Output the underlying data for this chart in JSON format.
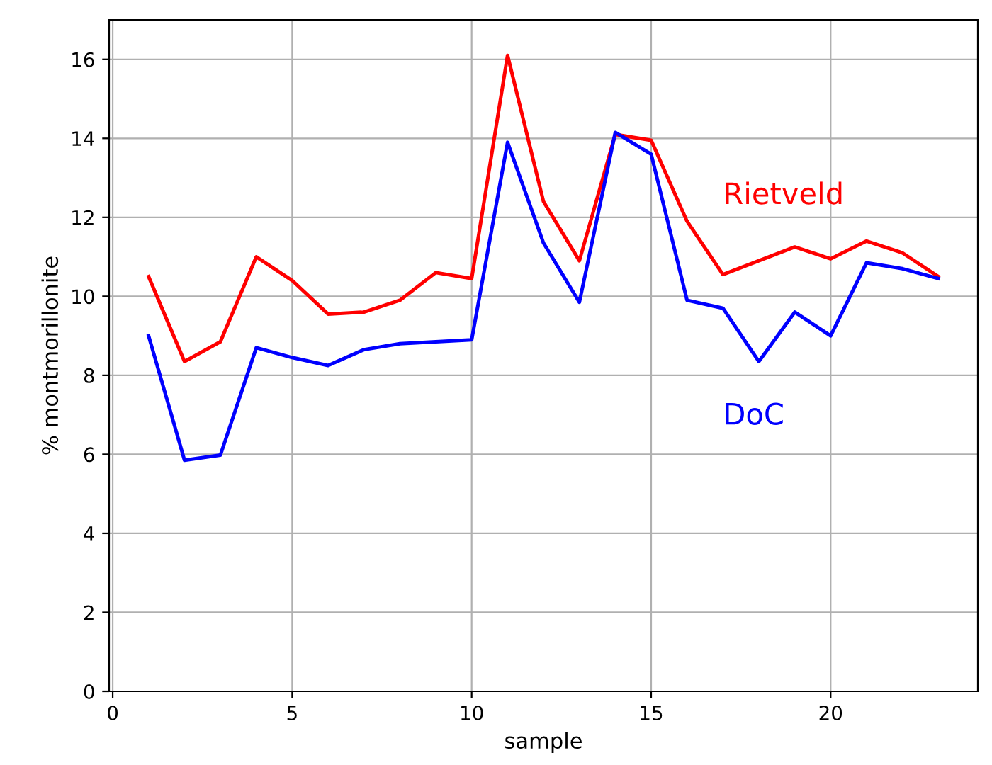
{
  "chart_data": {
    "type": "line",
    "xlabel": "sample",
    "ylabel": "% montmorillonite",
    "x": [
      1,
      2,
      3,
      4,
      5,
      6,
      7,
      8,
      9,
      10,
      11,
      12,
      13,
      14,
      15,
      16,
      17,
      18,
      19,
      20,
      21,
      22,
      23
    ],
    "series": [
      {
        "name": "Rietveld",
        "color": "#ff0000",
        "values": [
          10.5,
          8.35,
          8.85,
          11.0,
          10.4,
          9.55,
          9.6,
          9.9,
          10.6,
          10.45,
          16.1,
          12.4,
          10.9,
          14.1,
          13.95,
          11.9,
          10.55,
          10.9,
          11.25,
          10.95,
          11.4,
          11.1,
          10.5
        ]
      },
      {
        "name": "DoC",
        "color": "#0000ff",
        "values": [
          9.0,
          5.85,
          5.98,
          8.7,
          8.45,
          8.25,
          8.65,
          8.8,
          8.85,
          8.9,
          13.9,
          11.35,
          9.85,
          14.15,
          13.6,
          9.9,
          9.7,
          8.35,
          9.6,
          9.0,
          10.85,
          10.7,
          10.45
        ]
      }
    ],
    "xlim": [
      -0.1,
      24.1
    ],
    "ylim": [
      0,
      17
    ],
    "xticks": [
      0,
      5,
      10,
      15,
      20
    ],
    "yticks": [
      0,
      2,
      4,
      6,
      8,
      10,
      12,
      14,
      16
    ],
    "grid": true,
    "legend": false
  }
}
